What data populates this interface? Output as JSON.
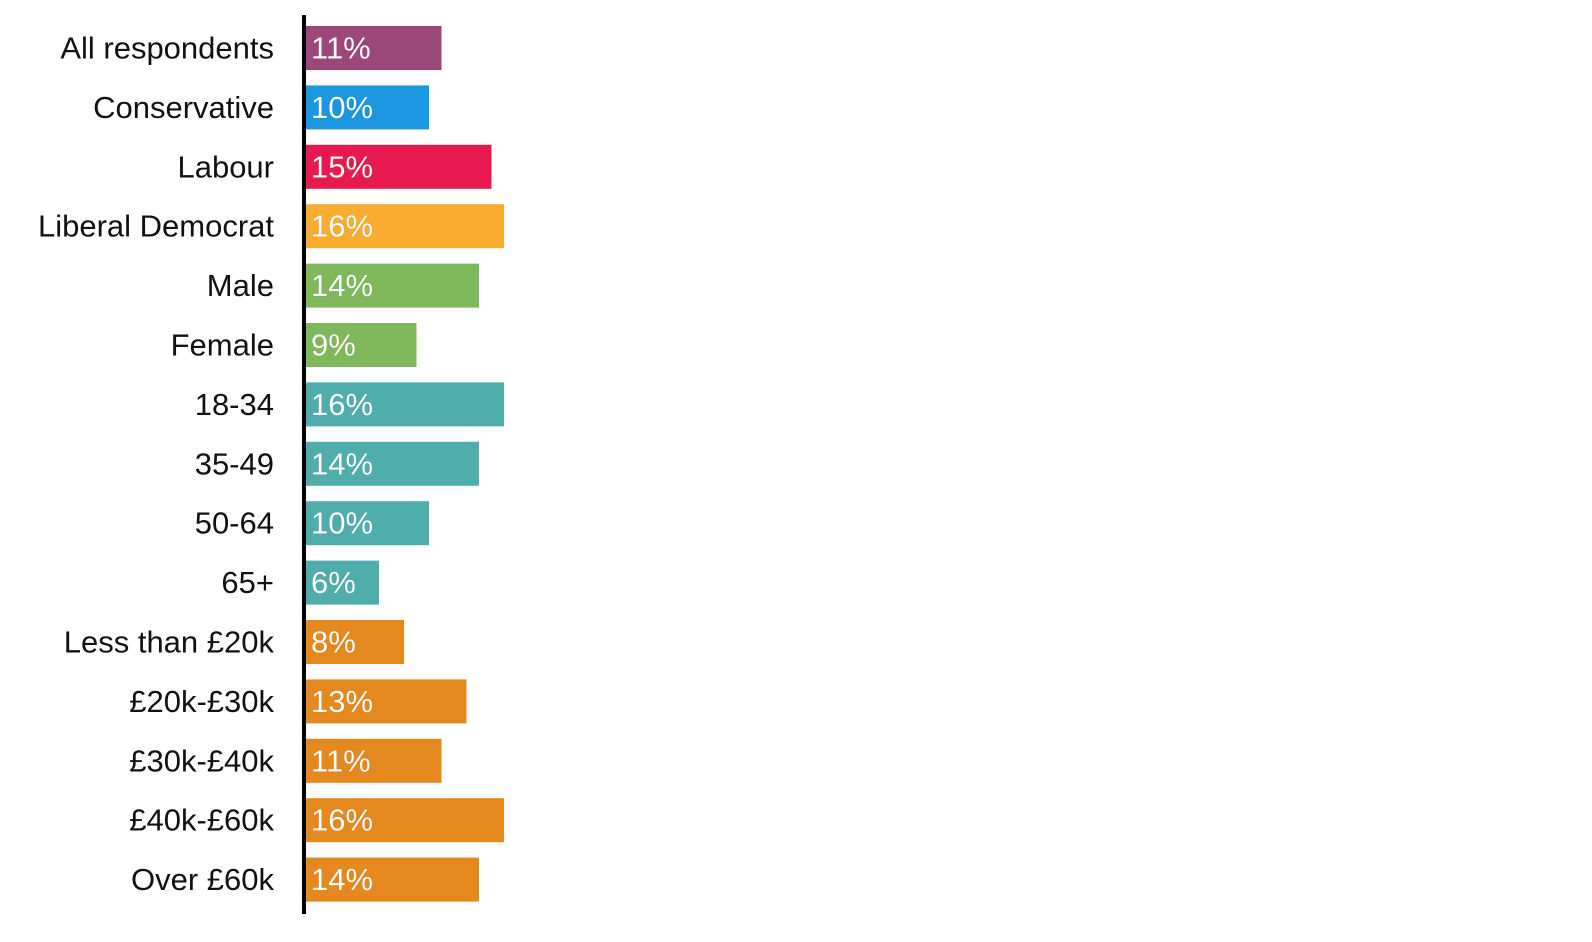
{
  "chart_data": {
    "type": "bar",
    "orientation": "horizontal",
    "categories": [
      "All respondents",
      "Conservative",
      "Labour",
      "Liberal Democrat",
      "Male",
      "Female",
      "18-34",
      "35-49",
      "50-64",
      "65+",
      "Less than £20k",
      "£20k-£30k",
      "£30k-£40k",
      "£40k-£60k",
      "Over £60k"
    ],
    "values": [
      11,
      10,
      15,
      16,
      14,
      9,
      16,
      14,
      10,
      6,
      8,
      13,
      11,
      16,
      14
    ],
    "value_labels": [
      "11%",
      "10%",
      "15%",
      "16%",
      "14%",
      "9%",
      "16%",
      "14%",
      "10%",
      "6%",
      "8%",
      "13%",
      "11%",
      "16%",
      "14%"
    ],
    "colors": [
      "#9c477a",
      "#1b96e0",
      "#e8194f",
      "#f9ad30",
      "#7fb85a",
      "#7fb85a",
      "#4faeab",
      "#4faeab",
      "#4faeab",
      "#4faeab",
      "#e5881e",
      "#e5881e",
      "#e5881e",
      "#e5881e",
      "#e5881e"
    ],
    "title": "",
    "xlabel": "",
    "ylabel": "",
    "xlim": [
      0,
      16
    ],
    "grid": false,
    "legend": "none"
  }
}
